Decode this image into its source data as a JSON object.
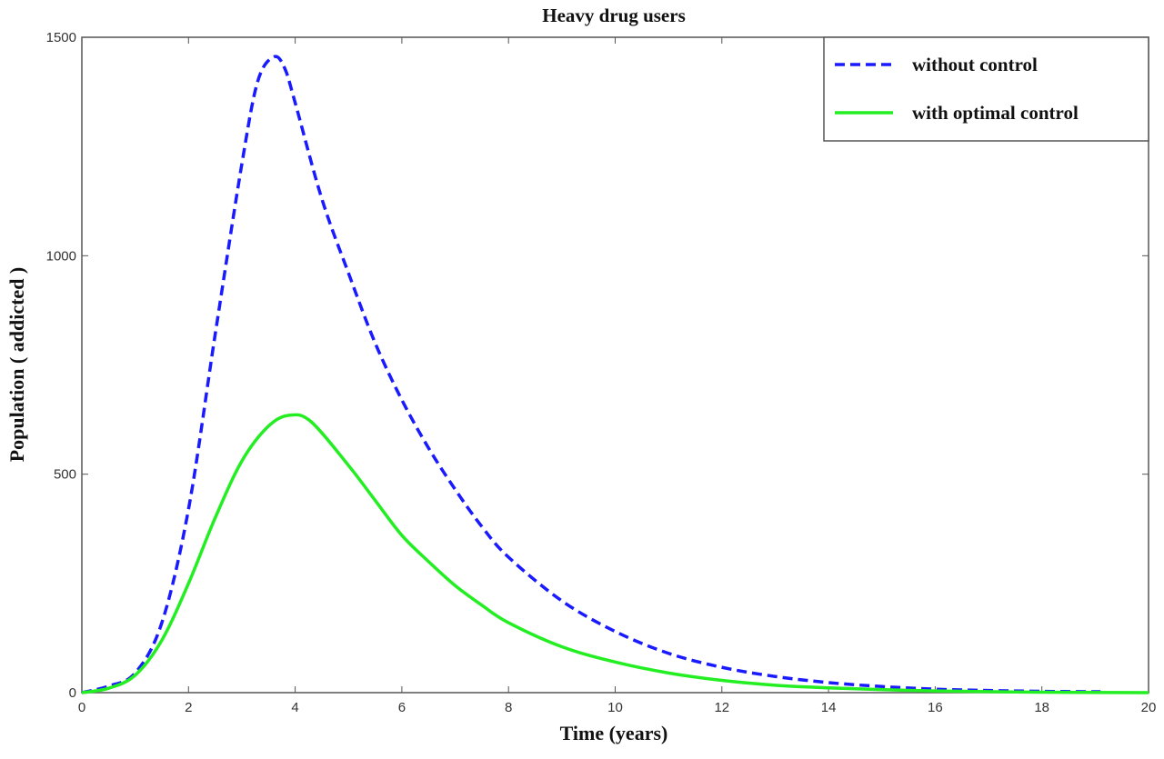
{
  "chart_data": {
    "type": "line",
    "title": "Heavy drug users",
    "xlabel": "Time (years)",
    "ylabel": "Population ( addicted )",
    "xlim": [
      0,
      20
    ],
    "ylim": [
      0,
      1500
    ],
    "xticks": [
      0,
      2,
      4,
      6,
      8,
      10,
      12,
      14,
      16,
      18,
      20
    ],
    "yticks": [
      0,
      500,
      1000,
      1500
    ],
    "grid": false,
    "legend_position": "top-right",
    "series": [
      {
        "name": "without control",
        "color": "#1a1aff",
        "style": "dashed",
        "x": [
          0,
          0.5,
          1,
          1.5,
          2,
          2.5,
          3,
          3.3,
          3.6,
          3.8,
          4,
          4.5,
          5,
          5.5,
          6,
          6.5,
          7,
          7.5,
          8,
          9,
          10,
          11,
          12,
          13,
          14,
          15,
          16,
          17,
          18,
          19.1
        ],
        "y": [
          0,
          15,
          45,
          160,
          420,
          820,
          1210,
          1400,
          1455,
          1430,
          1350,
          1130,
          960,
          800,
          670,
          560,
          465,
          380,
          310,
          210,
          140,
          90,
          58,
          37,
          23,
          14,
          8,
          5,
          3,
          2
        ]
      },
      {
        "name": "with optimal control",
        "color": "#22ee22",
        "style": "solid",
        "x": [
          0,
          0.5,
          1,
          1.5,
          2,
          2.5,
          3,
          3.5,
          3.9,
          4.3,
          5,
          5.5,
          6,
          6.5,
          7,
          7.5,
          8,
          9,
          10,
          11,
          12,
          13,
          14,
          15,
          16,
          18,
          20
        ],
        "y": [
          0,
          10,
          40,
          120,
          250,
          400,
          530,
          610,
          635,
          620,
          520,
          440,
          360,
          300,
          245,
          200,
          160,
          105,
          70,
          45,
          28,
          17,
          11,
          7,
          4,
          1,
          0
        ]
      }
    ]
  }
}
